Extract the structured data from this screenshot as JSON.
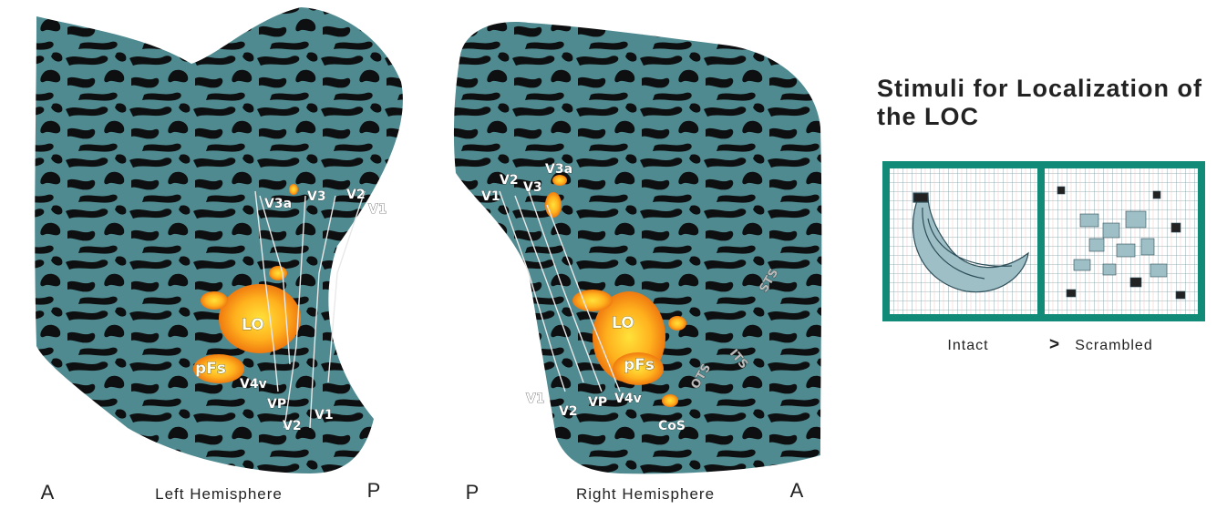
{
  "left_hemisphere": {
    "caption": "Left Hemisphere",
    "anterior": "A",
    "posterior": "P",
    "labels": [
      "V3a",
      "V3",
      "V2",
      "V1",
      "LO",
      "pFs",
      "V4v",
      "VP",
      "V2",
      "V1"
    ]
  },
  "right_hemisphere": {
    "caption": "Right Hemisphere",
    "anterior": "A",
    "posterior": "P",
    "labels": [
      "V3a",
      "V2",
      "V3",
      "V1",
      "STS",
      "LO",
      "ITS",
      "pFs",
      "OTS",
      "V1",
      "V2",
      "VP",
      "V4v",
      "CoS"
    ]
  },
  "stimuli": {
    "title": "Stimuli for Localization of the LOC",
    "intact": "Intact",
    "comparator": ">",
    "scrambled": "Scrambled"
  }
}
